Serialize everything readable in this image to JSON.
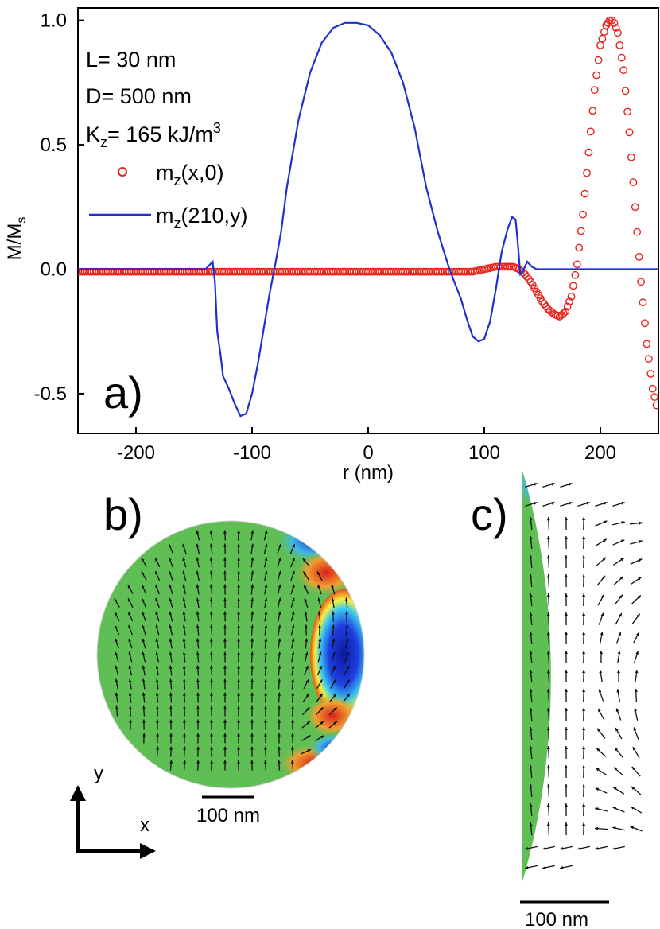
{
  "figure": {
    "panel_a_label": "a)",
    "panel_b_label": "b)",
    "panel_c_label": "c)",
    "params": [
      "L= 30 nm",
      "D= 500 nm",
      "K",
      "z",
      "= 165 kJ/m",
      "3"
    ],
    "scale_bar_b": "100 nm",
    "scale_bar_c": "100 nm",
    "axis_y": "y",
    "axis_x": "x",
    "colors": {
      "blue": "#1f2fd0",
      "red": "#e8231c",
      "field_green": "#5fbf55"
    }
  },
  "chart_data": {
    "type": "line",
    "title": "",
    "xlabel": "r (nm)",
    "ylabel": "M/M",
    "ylabel_sub": "s",
    "xlim": [
      -250,
      250
    ],
    "ylim": [
      -0.66,
      1.05
    ],
    "xticks": [
      -200,
      -100,
      0,
      100,
      200
    ],
    "xtick_labels": [
      "-200",
      "-100",
      "0",
      "100",
      "200"
    ],
    "yticks": [
      -0.5,
      0.0,
      0.5,
      1.0
    ],
    "ytick_labels": [
      "-0.5",
      "0.0",
      "0.5",
      "1.0"
    ],
    "legend": [
      {
        "text": "m",
        "sub": "z",
        "rest": "(x,0)",
        "marker": "circle"
      },
      {
        "text": "m",
        "sub": "z",
        "rest": "(210,y)",
        "marker": "line"
      }
    ],
    "series": [
      {
        "name": "m_z(210,y)",
        "style": "line",
        "color": "#1f2fd0",
        "x": [
          -250,
          -145,
          -140,
          -136,
          -134,
          -132,
          -130,
          -127,
          -125,
          -120,
          -115,
          -110,
          -105,
          -100,
          -95,
          -90,
          -85,
          -80,
          -75,
          -70,
          -60,
          -50,
          -40,
          -30,
          -20,
          -10,
          0,
          10,
          20,
          30,
          40,
          50,
          60,
          70,
          80,
          85,
          90,
          95,
          100,
          105,
          110,
          115,
          120,
          124,
          127,
          129,
          131,
          133,
          135,
          137,
          139,
          141,
          145,
          150,
          170,
          200,
          250
        ],
        "y": [
          0.0,
          0.0,
          0.0,
          0.02,
          0.03,
          -0.05,
          -0.25,
          -0.35,
          -0.43,
          -0.48,
          -0.54,
          -0.59,
          -0.58,
          -0.5,
          -0.38,
          -0.24,
          -0.1,
          0.02,
          0.15,
          0.33,
          0.6,
          0.79,
          0.91,
          0.97,
          0.99,
          0.99,
          0.98,
          0.94,
          0.87,
          0.75,
          0.57,
          0.33,
          0.15,
          0.0,
          -0.12,
          -0.2,
          -0.27,
          -0.29,
          -0.28,
          -0.21,
          -0.08,
          0.07,
          0.16,
          0.21,
          0.2,
          0.1,
          -0.02,
          -0.01,
          0.01,
          0.03,
          0.02,
          0.01,
          0.0,
          0.0,
          0.0,
          0.0,
          0.0
        ]
      },
      {
        "name": "m_z(x,0)",
        "style": "circles",
        "color": "#e8231c",
        "x": [
          -250,
          -230,
          -210,
          -190,
          -170,
          -150,
          -130,
          -110,
          -90,
          -70,
          -50,
          -30,
          -10,
          10,
          30,
          50,
          70,
          90,
          100,
          110,
          120,
          125,
          130,
          135,
          140,
          145,
          150,
          155,
          160,
          165,
          170,
          175,
          180,
          185,
          190,
          195,
          200,
          205,
          208,
          210,
          212,
          215,
          220,
          225,
          230,
          235,
          240,
          245,
          250
        ],
        "y": [
          -0.01,
          -0.01,
          -0.01,
          -0.01,
          -0.01,
          -0.01,
          -0.01,
          -0.01,
          -0.01,
          -0.01,
          -0.01,
          -0.01,
          -0.01,
          -0.01,
          -0.01,
          -0.01,
          -0.01,
          -0.01,
          0.0,
          0.01,
          0.01,
          0.01,
          0.0,
          -0.02,
          -0.05,
          -0.09,
          -0.13,
          -0.16,
          -0.18,
          -0.19,
          -0.17,
          -0.11,
          0.02,
          0.22,
          0.47,
          0.72,
          0.9,
          0.98,
          1.0,
          1.0,
          0.99,
          0.95,
          0.8,
          0.55,
          0.25,
          -0.05,
          -0.3,
          -0.48,
          -0.58
        ]
      }
    ]
  }
}
